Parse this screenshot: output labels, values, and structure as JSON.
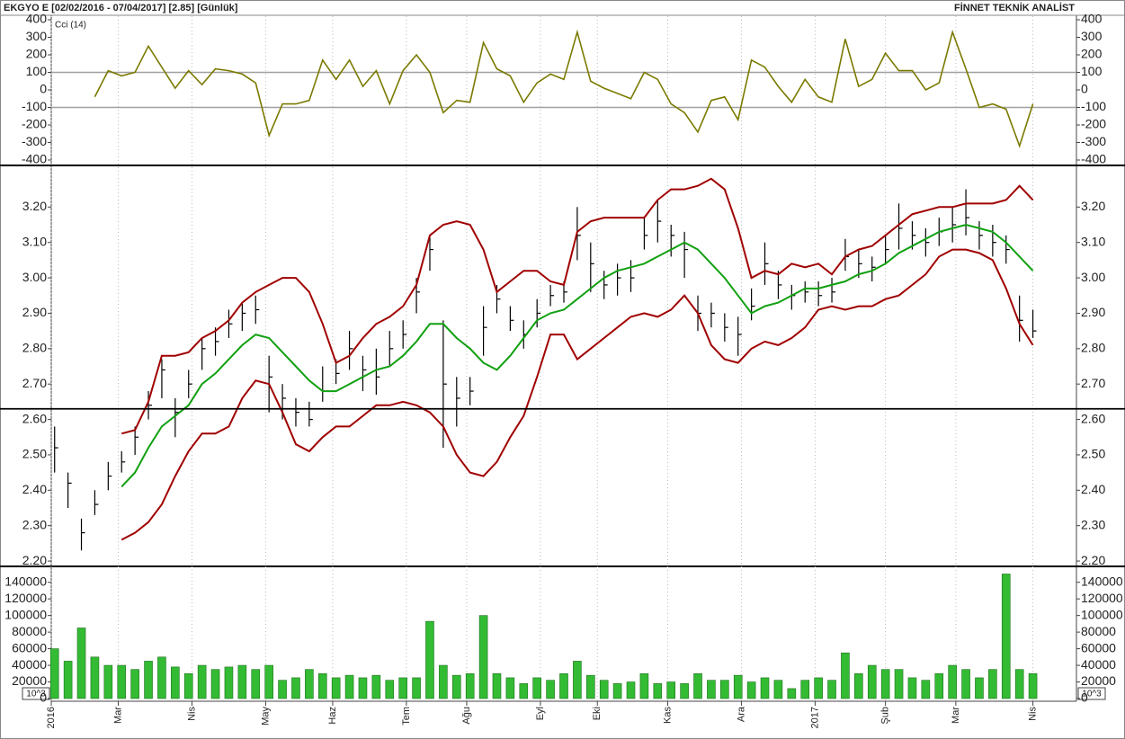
{
  "header": {
    "title": "EKGYO E  [02/02/2016 - 07/04/2017]  [2.85]  [Günlük]",
    "brand": "FİNNET TEKNİK ANALİST"
  },
  "chart_data": [
    {
      "type": "line",
      "title": "Cci (14)",
      "color": "#7a7a00",
      "values": [
        null,
        null,
        null,
        -40,
        110,
        80,
        100,
        250,
        130,
        10,
        110,
        30,
        120,
        110,
        90,
        40,
        -260,
        -80,
        -80,
        -60,
        170,
        60,
        170,
        20,
        110,
        -80,
        110,
        200,
        100,
        -130,
        -60,
        -70,
        270,
        120,
        80,
        -70,
        40,
        90,
        60,
        330,
        50,
        10,
        -20,
        -50,
        100,
        60,
        -80,
        -130,
        -240,
        -60,
        -40,
        -170,
        170,
        130,
        20,
        -70,
        60,
        -40,
        -70,
        290,
        20,
        60,
        210,
        110,
        110,
        0,
        40,
        330,
        120,
        -100,
        -80,
        -110,
        -320,
        -80
      ],
      "ylim": [
        -400,
        400
      ],
      "yticks": [
        400,
        300,
        200,
        100,
        0,
        -100,
        -200,
        -300,
        -400
      ],
      "ref_lines": [
        100,
        -100
      ],
      "ref_color": "#a0a0a0"
    },
    {
      "type": "ohlc",
      "color": "#000000",
      "x": [
        1,
        5,
        9,
        13,
        17,
        21,
        25,
        29,
        33,
        37,
        41,
        45,
        49,
        53,
        57,
        61,
        65,
        69,
        73,
        77,
        81,
        85,
        89,
        93,
        97,
        101,
        105,
        109,
        113,
        117,
        121,
        125,
        129,
        133,
        137,
        141,
        145,
        149,
        153,
        157,
        161,
        165,
        169,
        173,
        177,
        181,
        185,
        189,
        193,
        197,
        201,
        205,
        209,
        213,
        217,
        221,
        225,
        229,
        233,
        237,
        241,
        245,
        249,
        253,
        257,
        261,
        265,
        269,
        273,
        277,
        281,
        285,
        289,
        293
      ],
      "high": [
        2.58,
        2.45,
        2.32,
        2.4,
        2.48,
        2.51,
        2.58,
        2.68,
        2.77,
        2.66,
        2.74,
        2.83,
        2.86,
        2.91,
        2.93,
        2.95,
        2.78,
        2.7,
        2.66,
        2.65,
        2.75,
        2.77,
        2.85,
        2.78,
        2.8,
        2.85,
        2.88,
        3.0,
        3.12,
        2.88,
        2.72,
        2.72,
        2.92,
        2.98,
        2.92,
        2.88,
        2.94,
        2.98,
        2.99,
        3.2,
        3.1,
        3.02,
        3.04,
        3.05,
        3.17,
        3.22,
        3.15,
        3.13,
        2.95,
        2.93,
        2.9,
        2.89,
        2.97,
        3.1,
        3.02,
        2.98,
        2.99,
        2.99,
        3.0,
        3.11,
        3.08,
        3.06,
        3.12,
        3.21,
        3.16,
        3.14,
        3.17,
        3.2,
        3.25,
        3.16,
        3.15,
        3.12,
        2.95,
        2.91
      ],
      "low": [
        2.45,
        2.35,
        2.23,
        2.33,
        2.4,
        2.45,
        2.5,
        2.6,
        2.66,
        2.55,
        2.66,
        2.74,
        2.78,
        2.83,
        2.85,
        2.87,
        2.62,
        2.6,
        2.58,
        2.58,
        2.65,
        2.7,
        2.74,
        2.68,
        2.67,
        2.75,
        2.8,
        2.9,
        3.02,
        2.52,
        2.58,
        2.64,
        2.78,
        2.9,
        2.85,
        2.8,
        2.86,
        2.92,
        2.93,
        3.05,
        2.96,
        2.94,
        2.95,
        2.96,
        3.08,
        3.1,
        3.06,
        3.0,
        2.85,
        2.86,
        2.82,
        2.78,
        2.88,
        2.98,
        2.94,
        2.91,
        2.93,
        2.92,
        2.93,
        3.02,
        3.0,
        2.99,
        3.04,
        3.08,
        3.08,
        3.06,
        3.09,
        3.1,
        3.12,
        3.08,
        3.06,
        3.04,
        2.82,
        2.83
      ],
      "close": [
        2.52,
        2.42,
        2.28,
        2.36,
        2.44,
        2.48,
        2.55,
        2.64,
        2.74,
        2.62,
        2.7,
        2.8,
        2.82,
        2.87,
        2.9,
        2.91,
        2.72,
        2.66,
        2.62,
        2.6,
        2.68,
        2.73,
        2.8,
        2.74,
        2.72,
        2.8,
        2.84,
        2.96,
        3.08,
        2.7,
        2.66,
        2.68,
        2.86,
        2.94,
        2.88,
        2.84,
        2.9,
        2.95,
        2.96,
        3.12,
        3.04,
        2.98,
        3.0,
        3.0,
        3.12,
        3.16,
        3.12,
        3.08,
        2.9,
        2.9,
        2.86,
        2.84,
        2.92,
        3.04,
        2.98,
        2.95,
        2.96,
        2.95,
        2.96,
        3.06,
        3.04,
        3.03,
        3.08,
        3.14,
        3.12,
        3.1,
        3.13,
        3.15,
        3.17,
        3.12,
        3.1,
        3.08,
        2.88,
        2.85
      ],
      "upper": [
        null,
        null,
        null,
        null,
        null,
        2.56,
        2.57,
        2.65,
        2.78,
        2.78,
        2.79,
        2.83,
        2.85,
        2.88,
        2.93,
        2.96,
        2.98,
        3.0,
        3.0,
        2.96,
        2.87,
        2.76,
        2.78,
        2.83,
        2.87,
        2.89,
        2.92,
        2.98,
        3.12,
        3.15,
        3.16,
        3.15,
        3.08,
        2.96,
        2.99,
        3.02,
        3.02,
        2.99,
        2.98,
        3.13,
        3.16,
        3.17,
        3.17,
        3.17,
        3.17,
        3.22,
        3.25,
        3.25,
        3.26,
        3.28,
        3.25,
        3.14,
        3.0,
        3.02,
        3.01,
        3.04,
        3.03,
        3.04,
        3.01,
        3.06,
        3.08,
        3.09,
        3.12,
        3.15,
        3.18,
        3.19,
        3.2,
        3.2,
        3.21,
        3.21,
        3.21,
        3.22,
        3.26,
        3.22
      ],
      "middle": [
        null,
        null,
        null,
        null,
        null,
        2.41,
        2.45,
        2.52,
        2.58,
        2.61,
        2.64,
        2.7,
        2.73,
        2.77,
        2.81,
        2.84,
        2.83,
        2.79,
        2.75,
        2.71,
        2.68,
        2.68,
        2.7,
        2.72,
        2.74,
        2.75,
        2.78,
        2.82,
        2.87,
        2.87,
        2.83,
        2.8,
        2.76,
        2.74,
        2.78,
        2.83,
        2.88,
        2.9,
        2.91,
        2.94,
        2.97,
        3.0,
        3.02,
        3.03,
        3.04,
        3.06,
        3.08,
        3.1,
        3.08,
        3.04,
        3.0,
        2.95,
        2.9,
        2.92,
        2.93,
        2.95,
        2.97,
        2.97,
        2.98,
        2.99,
        3.01,
        3.02,
        3.04,
        3.07,
        3.09,
        3.11,
        3.13,
        3.14,
        3.15,
        3.14,
        3.13,
        3.1,
        3.06,
        3.02
      ],
      "lower": [
        null,
        null,
        null,
        null,
        null,
        2.26,
        2.28,
        2.31,
        2.36,
        2.44,
        2.51,
        2.56,
        2.56,
        2.58,
        2.66,
        2.71,
        2.7,
        2.62,
        2.53,
        2.51,
        2.55,
        2.58,
        2.58,
        2.61,
        2.64,
        2.64,
        2.65,
        2.64,
        2.62,
        2.58,
        2.5,
        2.45,
        2.44,
        2.48,
        2.55,
        2.61,
        2.72,
        2.84,
        2.84,
        2.77,
        2.8,
        2.83,
        2.86,
        2.89,
        2.9,
        2.89,
        2.91,
        2.95,
        2.9,
        2.81,
        2.77,
        2.76,
        2.8,
        2.82,
        2.81,
        2.83,
        2.86,
        2.91,
        2.92,
        2.91,
        2.92,
        2.92,
        2.94,
        2.95,
        2.98,
        3.01,
        3.06,
        3.08,
        3.08,
        3.07,
        3.05,
        2.97,
        2.87,
        2.81
      ],
      "band_color": "#a00000",
      "middle_color": "#10a010",
      "reference_line": 2.63,
      "xlim": [
        0,
        306
      ],
      "ylim": [
        2.19,
        3.31
      ],
      "yticks": [
        {
          "value": 3.2,
          "label": "3.20"
        },
        {
          "value": 3.1,
          "label": "3.10"
        },
        {
          "value": 3.0,
          "label": "3.00"
        },
        {
          "value": 2.9,
          "label": "2.90"
        },
        {
          "value": 2.8,
          "label": "2.80"
        },
        {
          "value": 2.7,
          "label": "2.70"
        },
        {
          "value": 2.6,
          "label": "2.60"
        },
        {
          "value": 2.5,
          "label": "2.50"
        },
        {
          "value": 2.4,
          "label": "2.40"
        },
        {
          "value": 2.3,
          "label": "2.30"
        },
        {
          "value": 2.2,
          "label": "2.20"
        }
      ]
    },
    {
      "type": "bar",
      "color": "#33bb33",
      "unit_label": "10^3",
      "grid": true,
      "values": [
        60000,
        45000,
        85000,
        50000,
        40000,
        40000,
        35000,
        45000,
        50000,
        38000,
        30000,
        40000,
        35000,
        38000,
        40000,
        35000,
        40000,
        22000,
        25000,
        35000,
        30000,
        25000,
        28000,
        25000,
        28000,
        22000,
        25000,
        25000,
        93000,
        40000,
        28000,
        30000,
        100000,
        30000,
        25000,
        18000,
        25000,
        22000,
        30000,
        45000,
        28000,
        22000,
        18000,
        20000,
        30000,
        18000,
        20000,
        18000,
        30000,
        22000,
        22000,
        28000,
        20000,
        25000,
        22000,
        12000,
        22000,
        25000,
        22000,
        55000,
        30000,
        40000,
        35000,
        35000,
        25000,
        22000,
        30000,
        40000,
        35000,
        25000,
        35000,
        150000,
        35000,
        30000
      ],
      "ylim": [
        0,
        157000
      ],
      "yticks": [
        140000,
        120000,
        100000,
        80000,
        60000,
        40000,
        20000,
        0
      ],
      "xticks": [
        {
          "value": 0,
          "label": "2016"
        },
        {
          "value": 20,
          "label": "Mar"
        },
        {
          "value": 42,
          "label": "Nis"
        },
        {
          "value": 64,
          "label": "May"
        },
        {
          "value": 84,
          "label": "Haz"
        },
        {
          "value": 106,
          "label": "Tem"
        },
        {
          "value": 124,
          "label": "Ağu"
        },
        {
          "value": 146,
          "label": "Eyl"
        },
        {
          "value": 163,
          "label": "Eki"
        },
        {
          "value": 184,
          "label": "Kas"
        },
        {
          "value": 206,
          "label": "Ara"
        },
        {
          "value": 228,
          "label": "2017"
        },
        {
          "value": 249,
          "label": "Şub"
        },
        {
          "value": 270,
          "label": "Mar"
        },
        {
          "value": 293,
          "label": "Nis"
        }
      ]
    }
  ]
}
